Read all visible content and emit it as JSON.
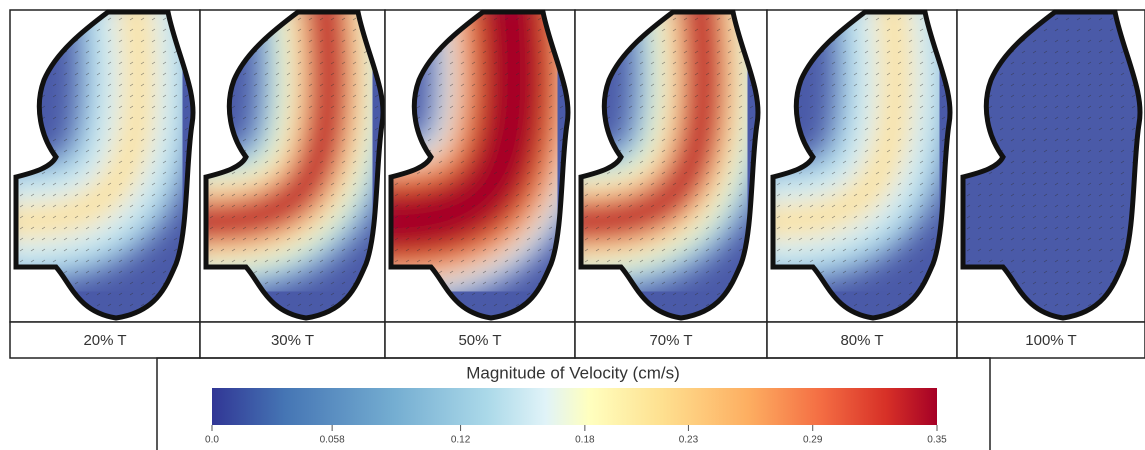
{
  "panels": [
    {
      "label": "20% T"
    },
    {
      "label": "30% T"
    },
    {
      "label": "50% T"
    },
    {
      "label": "70% T"
    },
    {
      "label": "80% T"
    },
    {
      "label": "100% T"
    }
  ],
  "colorbar": {
    "title": "Magnitude of Velocity (cm/s)",
    "lim": [
      0,
      0.35
    ],
    "ticks": [
      {
        "value": 0,
        "label": "0.0"
      },
      0.058,
      0.12,
      0.18,
      0.23,
      0.29,
      0.35
    ]
  }
}
